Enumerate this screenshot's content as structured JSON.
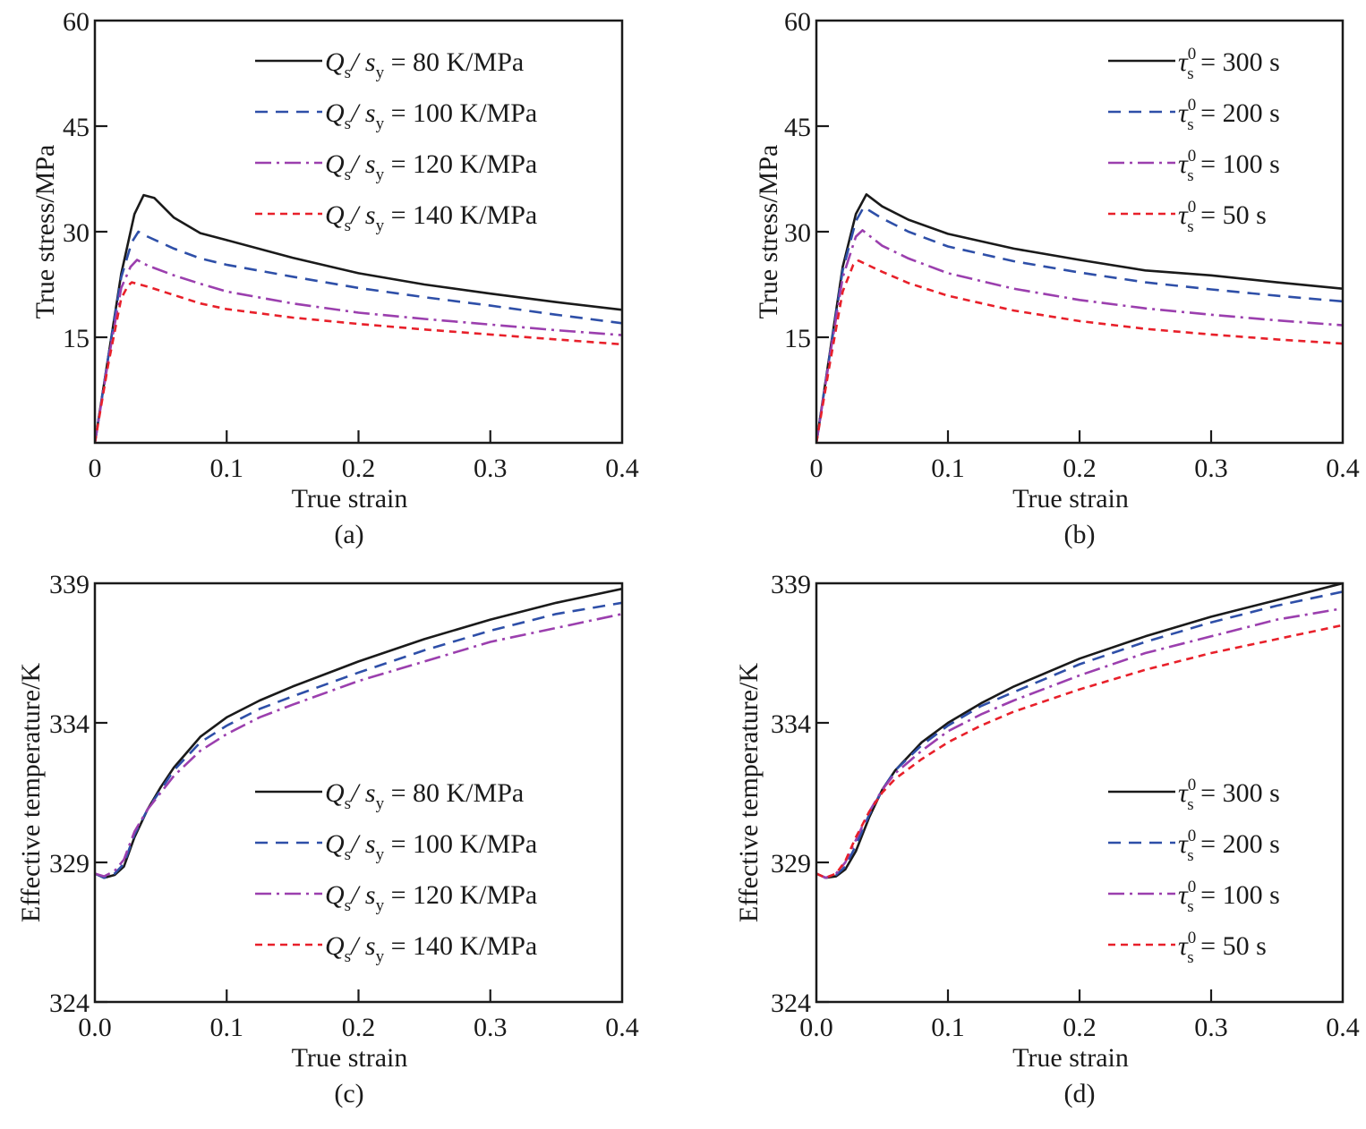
{
  "chart_data": [
    {
      "id": "a",
      "type": "line",
      "panel_label": "(a)",
      "xlabel": "True strain",
      "ylabel": "True stress/MPa",
      "xlim": [
        0,
        0.4
      ],
      "ylim": [
        0,
        60
      ],
      "xticks": [
        0,
        0.1,
        0.2,
        0.3,
        0.4
      ],
      "xtick_labels": [
        "0",
        "0.1",
        "0.2",
        "0.3",
        "0.4"
      ],
      "yticks": [
        15,
        30,
        45,
        60
      ],
      "ytick_labels": [
        "15",
        "30",
        "45",
        "60"
      ],
      "grid": false,
      "legend_position": "top-right",
      "series": [
        {
          "name": "Qs/sy = 80 K/MPa",
          "legend": {
            "main": "Q",
            "sub1": "s",
            "mid": "/ s",
            "sub2": "y",
            "rest": " = 80 K/MPa"
          },
          "color": "#1a1a1a",
          "style": "solid",
          "x": [
            0.0,
            0.01,
            0.02,
            0.03,
            0.037,
            0.045,
            0.06,
            0.08,
            0.1,
            0.15,
            0.2,
            0.25,
            0.3,
            0.35,
            0.4
          ],
          "y": [
            0.0,
            12.0,
            24.0,
            32.5,
            35.2,
            34.8,
            32.0,
            29.8,
            28.8,
            26.3,
            24.1,
            22.5,
            21.2,
            20.0,
            18.9
          ]
        },
        {
          "name": "Qs/sy = 100 K/MPa",
          "legend": {
            "main": "Q",
            "sub1": "s",
            "mid": "/ s",
            "sub2": "y",
            "rest": " = 100 K/MPa"
          },
          "color": "#2e4fa8",
          "style": "dashed",
          "x": [
            0.0,
            0.01,
            0.02,
            0.028,
            0.033,
            0.04,
            0.06,
            0.08,
            0.1,
            0.15,
            0.2,
            0.25,
            0.3,
            0.35,
            0.4
          ],
          "y": [
            0.0,
            12.0,
            23.5,
            28.5,
            30.0,
            29.3,
            27.6,
            26.2,
            25.3,
            23.6,
            22.0,
            20.7,
            19.5,
            18.2,
            17.0
          ]
        },
        {
          "name": "Qs/sy = 120 K/MPa",
          "legend": {
            "main": "Q",
            "sub1": "s",
            "mid": "/ s",
            "sub2": "y",
            "rest": " = 120 K/MPa"
          },
          "color": "#9b3fae",
          "style": "dashdot",
          "x": [
            0.0,
            0.01,
            0.02,
            0.027,
            0.032,
            0.04,
            0.06,
            0.08,
            0.1,
            0.15,
            0.2,
            0.25,
            0.3,
            0.35,
            0.4
          ],
          "y": [
            0.0,
            11.5,
            22.0,
            25.0,
            26.0,
            25.2,
            23.8,
            22.6,
            21.5,
            19.8,
            18.5,
            17.6,
            16.8,
            16.0,
            15.3
          ]
        },
        {
          "name": "Qs/sy = 140 K/MPa",
          "legend": {
            "main": "Q",
            "sub1": "s",
            "mid": "/ s",
            "sub2": "y",
            "rest": " = 140 K/MPa"
          },
          "color": "#e8202a",
          "style": "shortdash",
          "x": [
            0.0,
            0.01,
            0.02,
            0.025,
            0.028,
            0.04,
            0.06,
            0.08,
            0.1,
            0.15,
            0.2,
            0.25,
            0.3,
            0.35,
            0.4
          ],
          "y": [
            0.0,
            11.0,
            20.5,
            22.3,
            22.8,
            22.2,
            21.0,
            19.8,
            19.0,
            17.8,
            16.9,
            16.1,
            15.4,
            14.7,
            14.0
          ]
        }
      ]
    },
    {
      "id": "b",
      "type": "line",
      "panel_label": "(b)",
      "xlabel": "True strain",
      "ylabel": "True stress/MPa",
      "xlim": [
        0,
        0.4
      ],
      "ylim": [
        0,
        60
      ],
      "xticks": [
        0,
        0.1,
        0.2,
        0.3,
        0.4
      ],
      "xtick_labels": [
        "0",
        "0.1",
        "0.2",
        "0.3",
        "0.4"
      ],
      "yticks": [
        15,
        30,
        45,
        60
      ],
      "ytick_labels": [
        "15",
        "30",
        "45",
        "60"
      ],
      "grid": false,
      "legend_position": "top-right",
      "series": [
        {
          "name": "τs0 = 300 s",
          "legend": {
            "main": "τ",
            "sub1": "s",
            "sup": "0",
            "rest": " = 300 s"
          },
          "color": "#1a1a1a",
          "style": "solid",
          "x": [
            0.0,
            0.01,
            0.02,
            0.03,
            0.038,
            0.05,
            0.07,
            0.1,
            0.15,
            0.2,
            0.25,
            0.3,
            0.35,
            0.4
          ],
          "y": [
            0.0,
            12.5,
            25.0,
            32.5,
            35.3,
            33.6,
            31.7,
            29.7,
            27.6,
            26.0,
            24.5,
            23.8,
            22.8,
            21.9
          ]
        },
        {
          "name": "τs0 = 200 s",
          "legend": {
            "main": "τ",
            "sub1": "s",
            "sup": "0",
            "rest": " = 200 s"
          },
          "color": "#2e4fa8",
          "style": "dashed",
          "x": [
            0.0,
            0.01,
            0.02,
            0.03,
            0.036,
            0.05,
            0.07,
            0.1,
            0.15,
            0.2,
            0.25,
            0.3,
            0.35,
            0.4
          ],
          "y": [
            0.0,
            12.3,
            24.5,
            31.5,
            33.5,
            31.9,
            30.0,
            27.9,
            25.8,
            24.2,
            22.8,
            21.8,
            20.9,
            20.1
          ]
        },
        {
          "name": "τs0 = 100 s",
          "legend": {
            "main": "τ",
            "sub1": "s",
            "sup": "0",
            "rest": " = 100 s"
          },
          "color": "#9b3fae",
          "style": "dashdot",
          "x": [
            0.0,
            0.01,
            0.02,
            0.03,
            0.035,
            0.05,
            0.07,
            0.1,
            0.15,
            0.2,
            0.25,
            0.3,
            0.35,
            0.4
          ],
          "y": [
            0.0,
            12.0,
            23.5,
            29.3,
            30.2,
            28.0,
            26.2,
            24.1,
            21.9,
            20.3,
            19.1,
            18.2,
            17.4,
            16.7
          ]
        },
        {
          "name": "τs0 = 50 s",
          "legend": {
            "main": "τ",
            "sub1": "s",
            "sup": "0",
            "rest": " = 50 s"
          },
          "color": "#e8202a",
          "style": "shortdash",
          "x": [
            0.0,
            0.01,
            0.02,
            0.028,
            0.032,
            0.05,
            0.07,
            0.1,
            0.15,
            0.2,
            0.25,
            0.3,
            0.35,
            0.4
          ],
          "y": [
            0.0,
            11.0,
            21.5,
            25.3,
            25.9,
            24.3,
            22.7,
            20.9,
            18.8,
            17.3,
            16.2,
            15.4,
            14.7,
            14.1
          ]
        }
      ]
    },
    {
      "id": "c",
      "type": "line",
      "panel_label": "(c)",
      "xlabel": "True strain",
      "ylabel": "Effective temperature/K",
      "xlim": [
        0,
        0.4
      ],
      "ylim": [
        324,
        339
      ],
      "xticks": [
        0,
        0.1,
        0.2,
        0.3,
        0.4
      ],
      "xtick_labels": [
        "0.0",
        "0.1",
        "0.2",
        "0.3",
        "0.4"
      ],
      "yticks": [
        324,
        329,
        334,
        339
      ],
      "ytick_labels": [
        "324",
        "329",
        "334",
        "339"
      ],
      "grid": false,
      "legend_position": "center-right",
      "series": [
        {
          "name": "Qs/sy = 80 K/MPa",
          "legend": {
            "main": "Q",
            "sub1": "s",
            "mid": "/ s",
            "sub2": "y",
            "rest": " = 80 K/MPa"
          },
          "color": "#1a1a1a",
          "style": "solid",
          "x": [
            0.0,
            0.007,
            0.015,
            0.022,
            0.03,
            0.04,
            0.05,
            0.06,
            0.08,
            0.1,
            0.125,
            0.15,
            0.2,
            0.25,
            0.3,
            0.35,
            0.4
          ],
          "y": [
            328.6,
            328.45,
            328.55,
            328.85,
            329.9,
            330.9,
            331.7,
            332.4,
            333.5,
            334.2,
            334.8,
            335.3,
            336.2,
            337.0,
            337.7,
            338.3,
            338.8
          ]
        },
        {
          "name": "Qs/sy = 100 K/MPa",
          "legend": {
            "main": "Q",
            "sub1": "s",
            "mid": "/ s",
            "sub2": "y",
            "rest": " = 100 K/MPa"
          },
          "color": "#2e4fa8",
          "style": "dashed",
          "x": [
            0.0,
            0.007,
            0.015,
            0.022,
            0.03,
            0.04,
            0.05,
            0.06,
            0.08,
            0.1,
            0.125,
            0.15,
            0.2,
            0.25,
            0.3,
            0.35,
            0.4
          ],
          "y": [
            328.6,
            328.45,
            328.6,
            328.95,
            330.0,
            330.9,
            331.6,
            332.3,
            333.3,
            333.9,
            334.5,
            334.95,
            335.8,
            336.6,
            337.3,
            337.9,
            338.3
          ]
        },
        {
          "name": "Qs/sy = 120 K/MPa",
          "legend": {
            "main": "Q",
            "sub1": "s",
            "mid": "/ s",
            "sub2": "y",
            "rest": " = 120 K/MPa"
          },
          "color": "#9b3fae",
          "style": "dashdot",
          "x": [
            0.0,
            0.007,
            0.015,
            0.022,
            0.03,
            0.04,
            0.05,
            0.06,
            0.08,
            0.1,
            0.125,
            0.15,
            0.2,
            0.25,
            0.3,
            0.35,
            0.4
          ],
          "y": [
            328.6,
            328.5,
            328.7,
            329.1,
            330.1,
            330.9,
            331.5,
            332.1,
            333.0,
            333.6,
            334.2,
            334.65,
            335.5,
            336.2,
            336.9,
            337.4,
            337.9
          ]
        },
        {
          "name": "Qs/sy = 140 K/MPa",
          "legend": {
            "main": "Q",
            "sub1": "s",
            "mid": "/ s",
            "sub2": "y",
            "rest": " = 140 K/MPa"
          },
          "color": "#e8202a",
          "style": "shortdash",
          "x": [],
          "y": []
        }
      ]
    },
    {
      "id": "d",
      "type": "line",
      "panel_label": "(d)",
      "xlabel": "True strain",
      "ylabel": "Effective temperature/K",
      "xlim": [
        0,
        0.4
      ],
      "ylim": [
        324,
        339
      ],
      "xticks": [
        0,
        0.1,
        0.2,
        0.3,
        0.4
      ],
      "xtick_labels": [
        "0.0",
        "0.1",
        "0.2",
        "0.3",
        "0.4"
      ],
      "yticks": [
        324,
        329,
        334,
        339
      ],
      "ytick_labels": [
        "324",
        "329",
        "334",
        "339"
      ],
      "grid": false,
      "legend_position": "center-right",
      "series": [
        {
          "name": "τs0 = 300 s",
          "legend": {
            "main": "τ",
            "sub1": "s",
            "sup": "0",
            "rest": " = 300 s"
          },
          "color": "#1a1a1a",
          "style": "solid",
          "x": [
            0.0,
            0.007,
            0.015,
            0.022,
            0.03,
            0.04,
            0.05,
            0.06,
            0.08,
            0.1,
            0.125,
            0.15,
            0.2,
            0.25,
            0.3,
            0.35,
            0.4
          ],
          "y": [
            328.6,
            328.45,
            328.5,
            328.75,
            329.4,
            330.6,
            331.6,
            332.3,
            333.3,
            334.0,
            334.7,
            335.3,
            336.3,
            337.1,
            337.8,
            338.4,
            339.0
          ]
        },
        {
          "name": "τs0 = 200 s",
          "legend": {
            "main": "τ",
            "sub1": "s",
            "sup": "0",
            "rest": " = 200 s"
          },
          "color": "#2e4fa8",
          "style": "dashed",
          "x": [
            0.0,
            0.007,
            0.015,
            0.022,
            0.03,
            0.04,
            0.05,
            0.06,
            0.08,
            0.1,
            0.125,
            0.15,
            0.2,
            0.25,
            0.3,
            0.35,
            0.4
          ],
          "y": [
            328.6,
            328.45,
            328.55,
            328.85,
            329.6,
            330.7,
            331.6,
            332.3,
            333.2,
            333.9,
            334.6,
            335.1,
            336.1,
            336.9,
            337.6,
            338.2,
            338.7
          ]
        },
        {
          "name": "τs0 = 100 s",
          "legend": {
            "main": "τ",
            "sub1": "s",
            "sup": "0",
            "rest": " = 100 s"
          },
          "color": "#9b3fae",
          "style": "dashdot",
          "x": [
            0.0,
            0.007,
            0.015,
            0.022,
            0.03,
            0.04,
            0.05,
            0.06,
            0.08,
            0.1,
            0.125,
            0.15,
            0.2,
            0.25,
            0.3,
            0.35,
            0.4
          ],
          "y": [
            328.6,
            328.45,
            328.6,
            329.0,
            329.8,
            330.8,
            331.6,
            332.2,
            333.0,
            333.7,
            334.3,
            334.8,
            335.7,
            336.5,
            337.1,
            337.7,
            338.1
          ]
        },
        {
          "name": "τs0 = 50 s",
          "legend": {
            "main": "τ",
            "sub1": "s",
            "sup": "0",
            "rest": " = 50 s"
          },
          "color": "#e8202a",
          "style": "shortdash",
          "x": [
            0.0,
            0.007,
            0.015,
            0.022,
            0.03,
            0.04,
            0.05,
            0.06,
            0.08,
            0.1,
            0.125,
            0.15,
            0.2,
            0.25,
            0.3,
            0.35,
            0.4
          ],
          "y": [
            328.6,
            328.45,
            328.6,
            329.05,
            329.9,
            330.8,
            331.5,
            332.0,
            332.7,
            333.3,
            333.9,
            334.4,
            335.2,
            335.9,
            336.5,
            337.0,
            337.5
          ]
        }
      ]
    }
  ]
}
